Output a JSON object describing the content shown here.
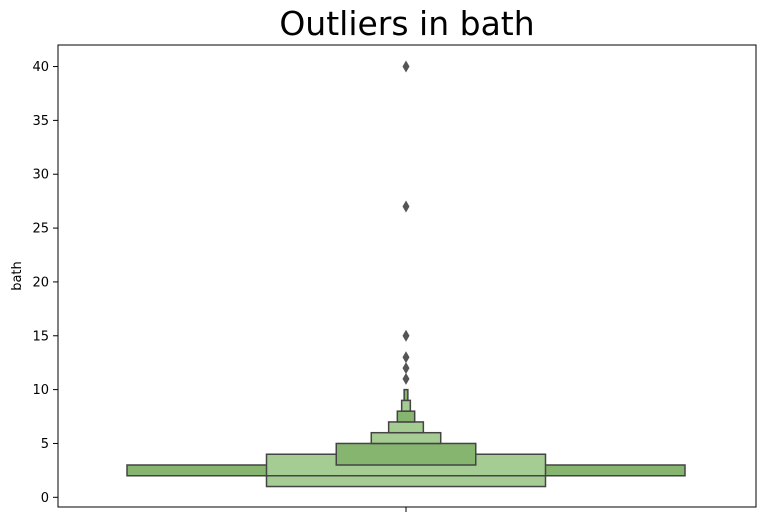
{
  "chart_data": {
    "type": "boxenplot",
    "title": "Outliers in bath",
    "xlabel": "",
    "ylabel": "bath",
    "ylim": [
      -0.9,
      42
    ],
    "yticks": [
      0,
      5,
      10,
      15,
      20,
      25,
      30,
      35,
      40
    ],
    "grid": false,
    "colors": {
      "box_dark": "#86b56f",
      "box_light": "#a5cc92",
      "edge": "#444444",
      "outlier": "#555555"
    },
    "boxes": [
      {
        "low": 2,
        "high": 3,
        "half_width": 0.9,
        "shade": "dark"
      },
      {
        "low": 1,
        "high": 4,
        "half_width": 0.45,
        "shade": "light"
      },
      {
        "low": 3,
        "high": 5,
        "half_width": 0.225,
        "shade": "dark"
      },
      {
        "low": 5,
        "high": 6,
        "half_width": 0.112,
        "shade": "light"
      },
      {
        "low": 6,
        "high": 7,
        "half_width": 0.056,
        "shade": "light"
      },
      {
        "low": 7,
        "high": 8,
        "half_width": 0.028,
        "shade": "dark"
      },
      {
        "low": 8,
        "high": 9,
        "half_width": 0.014,
        "shade": "light"
      },
      {
        "low": 9,
        "high": 10,
        "half_width": 0.006,
        "shade": "dark"
      }
    ],
    "outliers": [
      11,
      12,
      13,
      15,
      27,
      40
    ]
  }
}
